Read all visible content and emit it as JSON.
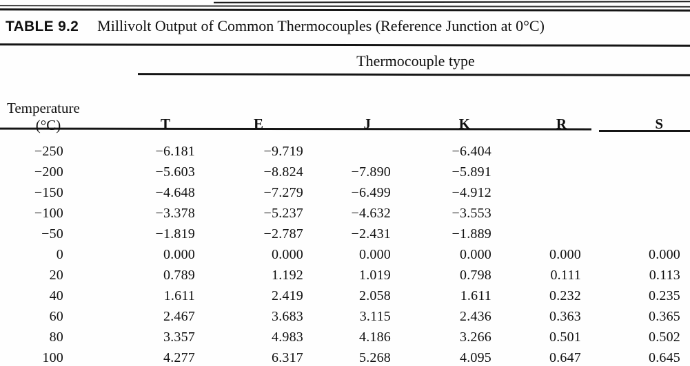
{
  "table": {
    "label": "TABLE 9.2",
    "title": "Millivolt Output of Common Thermocouples (Reference Junction at 0°C)",
    "spanner": "Thermocouple type",
    "temp_header_line1": "Temperature",
    "temp_header_line2": "(°C)",
    "columns": [
      "T",
      "E",
      "J",
      "K",
      "R",
      "S"
    ],
    "rows": [
      [
        "−250",
        "−6.181",
        "−9.719",
        "",
        "−6.404",
        "",
        ""
      ],
      [
        "−200",
        "−5.603",
        "−8.824",
        "−7.890",
        "−5.891",
        "",
        ""
      ],
      [
        "−150",
        "−4.648",
        "−7.279",
        "−6.499",
        "−4.912",
        "",
        ""
      ],
      [
        "−100",
        "−3.378",
        "−5.237",
        "−4.632",
        "−3.553",
        "",
        ""
      ],
      [
        "−50",
        "−1.819",
        "−2.787",
        "−2.431",
        "−1.889",
        "",
        ""
      ],
      [
        "0",
        "0.000",
        "0.000",
        "0.000",
        "0.000",
        "0.000",
        "0.000"
      ],
      [
        "20",
        "0.789",
        "1.192",
        "1.019",
        "0.798",
        "0.111",
        "0.113"
      ],
      [
        "40",
        "1.611",
        "2.419",
        "2.058",
        "1.611",
        "0.232",
        "0.235"
      ],
      [
        "60",
        "2.467",
        "3.683",
        "3.115",
        "2.436",
        "0.363",
        "0.365"
      ],
      [
        "80",
        "3.357",
        "4.983",
        "4.186",
        "3.266",
        "0.501",
        "0.502"
      ],
      [
        "100",
        "4.277",
        "6.317",
        "5.268",
        "4.095",
        "0.647",
        "0.645"
      ]
    ],
    "ink_color": "#151515",
    "paper_color": "#fefefe"
  }
}
